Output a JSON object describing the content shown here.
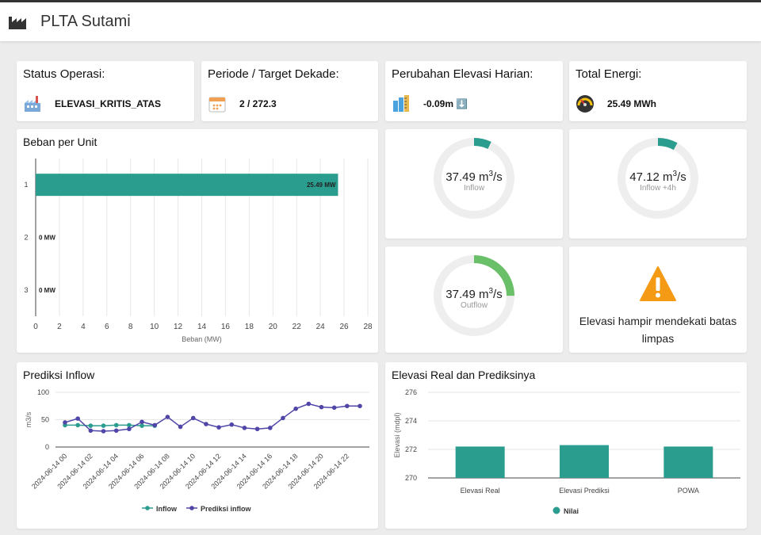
{
  "app": {
    "title": "PLTA Sutami"
  },
  "stats": [
    {
      "title": "Status Operasi:",
      "value": "ELEVASI_KRITIS_ATAS",
      "icon": "factory-icon"
    },
    {
      "title": "Periode / Target Dekade:",
      "value": "2 / 272.3",
      "icon": "calendar-icon"
    },
    {
      "title": "Perubahan Elevasi Harian:",
      "value": "-0.09m ⬇️",
      "icon": "ruler-icon"
    },
    {
      "title": "Total Energi:",
      "value": "25.49 MWh",
      "icon": "gauge-icon"
    }
  ],
  "gauges": [
    {
      "value": "37.49",
      "unit": "m",
      "sup": "3",
      "unit_suffix": "/s",
      "label": "Inflow",
      "fraction": 0.07,
      "color": "#2a9d8f"
    },
    {
      "value": "47.12",
      "unit": "m",
      "sup": "3",
      "unit_suffix": "/s",
      "label": "Inflow +4h",
      "fraction": 0.08,
      "color": "#2a9d8f"
    },
    {
      "value": "37.49",
      "unit": "m",
      "sup": "3",
      "unit_suffix": "/s",
      "label": "Outflow",
      "fraction": 0.25,
      "color": "#6abf69"
    }
  ],
  "warning": {
    "text": "Elevasi hampir mendekati batas limpas",
    "icon": "warning-icon"
  },
  "load_chart": {
    "title": "Beban per Unit",
    "chart_data": {
      "type": "bar",
      "orientation": "horizontal",
      "categories": [
        "1",
        "2",
        "3"
      ],
      "values": [
        25.49,
        0,
        0
      ],
      "data_labels": [
        "25.49 MW",
        "0 MW",
        "0 MW"
      ],
      "xlabel": "Beban (MW)",
      "xlim": [
        0,
        28
      ],
      "xticks": [
        "0",
        "2",
        "4",
        "6",
        "8",
        "10",
        "12",
        "14",
        "16",
        "18",
        "20",
        "22",
        "24",
        "26",
        "28"
      ],
      "grid": true,
      "color": "#2a9d8f"
    }
  },
  "inflow_chart": {
    "title": "Prediksi Inflow",
    "chart_data": {
      "type": "line",
      "x": [
        "2024-06-14 00",
        "2024-06-14 01",
        "2024-06-14 02",
        "2024-06-14 03",
        "2024-06-14 04",
        "2024-06-14 05",
        "2024-06-14 06",
        "2024-06-14 07",
        "2024-06-14 08",
        "2024-06-14 09",
        "2024-06-14 10",
        "2024-06-14 11",
        "2024-06-14 12",
        "2024-06-14 13",
        "2024-06-14 14",
        "2024-06-14 15",
        "2024-06-14 16",
        "2024-06-14 17",
        "2024-06-14 18",
        "2024-06-14 19",
        "2024-06-14 20",
        "2024-06-14 21",
        "2024-06-14 22",
        "2024-06-14 23"
      ],
      "xtick_labels": [
        "2024-06-14 00",
        "2024-06-14 02",
        "2024-06-14 04",
        "2024-06-14 06",
        "2024-06-14 08",
        "2024-06-14 10",
        "2024-06-14 12",
        "2024-06-14 14",
        "2024-06-14 16",
        "2024-06-14 18",
        "2024-06-14 20",
        "2024-06-14 22"
      ],
      "series": [
        {
          "name": "Inflow",
          "color": "#2a9d8f",
          "values": [
            40,
            40,
            39,
            39,
            40,
            40,
            39,
            39,
            null,
            null,
            null,
            null,
            null,
            null,
            null,
            null,
            null,
            null,
            null,
            null,
            null,
            null,
            null,
            null
          ]
        },
        {
          "name": "Prediksi inflow",
          "color": "#5046a8",
          "values": [
            45,
            52,
            30,
            29,
            30,
            33,
            46,
            40,
            55,
            37,
            53,
            42,
            36,
            41,
            35,
            33,
            35,
            53,
            70,
            79,
            73,
            72,
            75,
            75
          ]
        }
      ],
      "ylabel": "m3/s",
      "ylim": [
        0,
        100
      ],
      "yticks": [
        "0",
        "50",
        "100"
      ]
    }
  },
  "elevation_chart": {
    "title": "Elevasi Real dan Prediksinya",
    "chart_data": {
      "type": "bar",
      "categories": [
        "Elevasi Real",
        "Elevasi Prediksi",
        "POWA"
      ],
      "series": [
        {
          "name": "Nilai",
          "color": "#2a9d8f",
          "values": [
            272.2,
            272.3,
            272.2
          ]
        }
      ],
      "ylabel": "Elevasi (mdpl)",
      "ylim": [
        270,
        276
      ],
      "yticks": [
        "270",
        "272",
        "274",
        "276"
      ]
    }
  }
}
